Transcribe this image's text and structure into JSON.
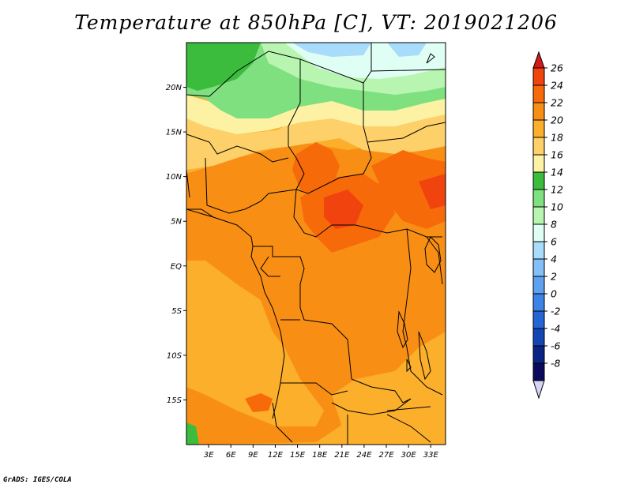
{
  "title": "Temperature at 850hPa [C], VT: 2019021206",
  "footer": "GrADS: IGES/COLA",
  "map": {
    "lon_range": [
      0,
      35
    ],
    "lat_range": [
      -20,
      25
    ],
    "lat_ticks": [
      "20N",
      "15N",
      "10N",
      "5N",
      "EQ",
      "5S",
      "10S",
      "15S"
    ],
    "lat_tick_values": [
      20,
      15,
      10,
      5,
      0,
      -5,
      -10,
      -15
    ],
    "lon_ticks": [
      "3E",
      "6E",
      "9E",
      "12E",
      "15E",
      "18E",
      "21E",
      "24E",
      "27E",
      "30E",
      "33E"
    ],
    "lon_tick_values": [
      3,
      6,
      9,
      12,
      15,
      18,
      21,
      24,
      27,
      30,
      33
    ]
  },
  "legend": {
    "labels": [
      "26",
      "24",
      "22",
      "20",
      "18",
      "16",
      "14",
      "12",
      "10",
      "8",
      "6",
      "4",
      "2",
      "0",
      "-2",
      "-4",
      "-6",
      "-8"
    ],
    "colors": [
      "#d7191c",
      "#f0430e",
      "#f76a0a",
      "#f88f14",
      "#fbaf2b",
      "#fdd06a",
      "#fdf2a4",
      "#3cbc3c",
      "#7fe07f",
      "#b8f5b0",
      "#e0fff4",
      "#a8dcfb",
      "#82c0f7",
      "#5da1ef",
      "#3d82e6",
      "#2565d4",
      "#1346b4",
      "#0a2486",
      "#090a5c"
    ],
    "arrow_low_color": "#d4d4f4"
  }
}
